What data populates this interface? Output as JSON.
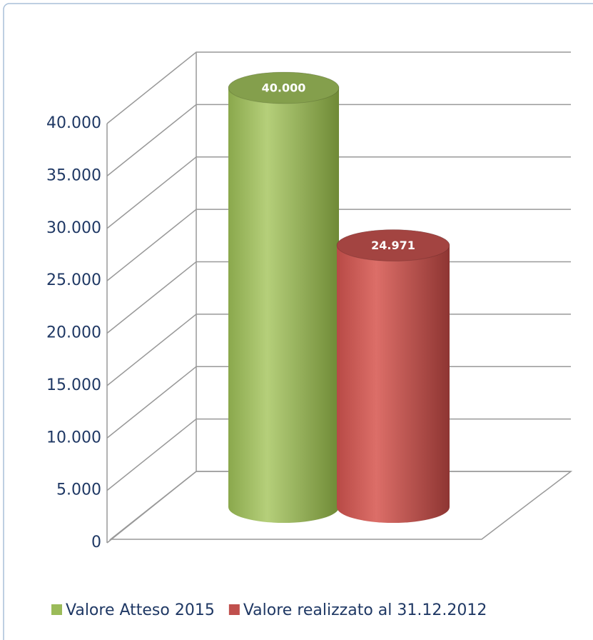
{
  "chart_data": {
    "type": "cylinder",
    "series": [
      {
        "name": "Valore Atteso 2015",
        "color": "#9bbb59",
        "values": [
          40000
        ],
        "value_labels": [
          "40.000"
        ]
      },
      {
        "name": "Valore realizzato al 31.12.2012",
        "color": "#c0504d",
        "values": [
          24971
        ],
        "value_labels": [
          "24.971"
        ]
      }
    ],
    "ylim": [
      0,
      40000
    ],
    "yticks": [
      0,
      {
        "value": 5000,
        "label": "5.000"
      },
      {
        "value": 10000,
        "label": "10.000"
      },
      {
        "value": 15000,
        "label": "15.000"
      },
      {
        "value": 20000,
        "label": "20.000"
      },
      {
        "value": 25000,
        "label": "25.000"
      },
      {
        "value": 30000,
        "label": "30.000"
      },
      {
        "value": 35000,
        "label": "35.000"
      },
      {
        "value": 40000,
        "label": "40.000"
      }
    ],
    "grid": true,
    "legend": "bottom"
  }
}
